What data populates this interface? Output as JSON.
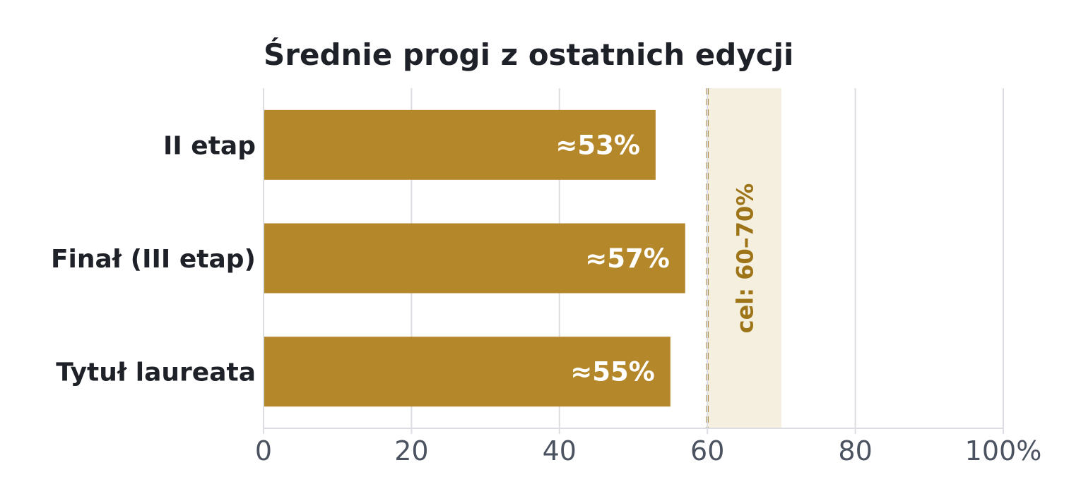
{
  "chart_data": {
    "type": "bar",
    "orientation": "horizontal",
    "title": "Średnie progi z ostatnich edycji",
    "categories": [
      "II etap",
      "Finał (III etap)",
      "Tytuł laureata"
    ],
    "values": [
      53,
      57,
      55
    ],
    "value_labels": [
      "≈53%",
      "≈57%",
      "≈55%"
    ],
    "xlim": [
      0,
      100
    ],
    "xticks": [
      0,
      20,
      40,
      60,
      80,
      100
    ],
    "xtick_labels": [
      "0",
      "20",
      "40",
      "60",
      "80",
      "100%"
    ],
    "xlabel": "",
    "ylabel": "",
    "grid": "vertical",
    "target_band": {
      "from": 60,
      "to": 70,
      "label": "cel: 60–70%"
    },
    "colors": {
      "bar": "#b5872b",
      "target_band": "#f5efdf",
      "target_line": "#9e7418",
      "target_text": "#9e7418",
      "grid": "#dcdde2",
      "title": "#1f2128",
      "tick_text": "#4b5260"
    }
  }
}
